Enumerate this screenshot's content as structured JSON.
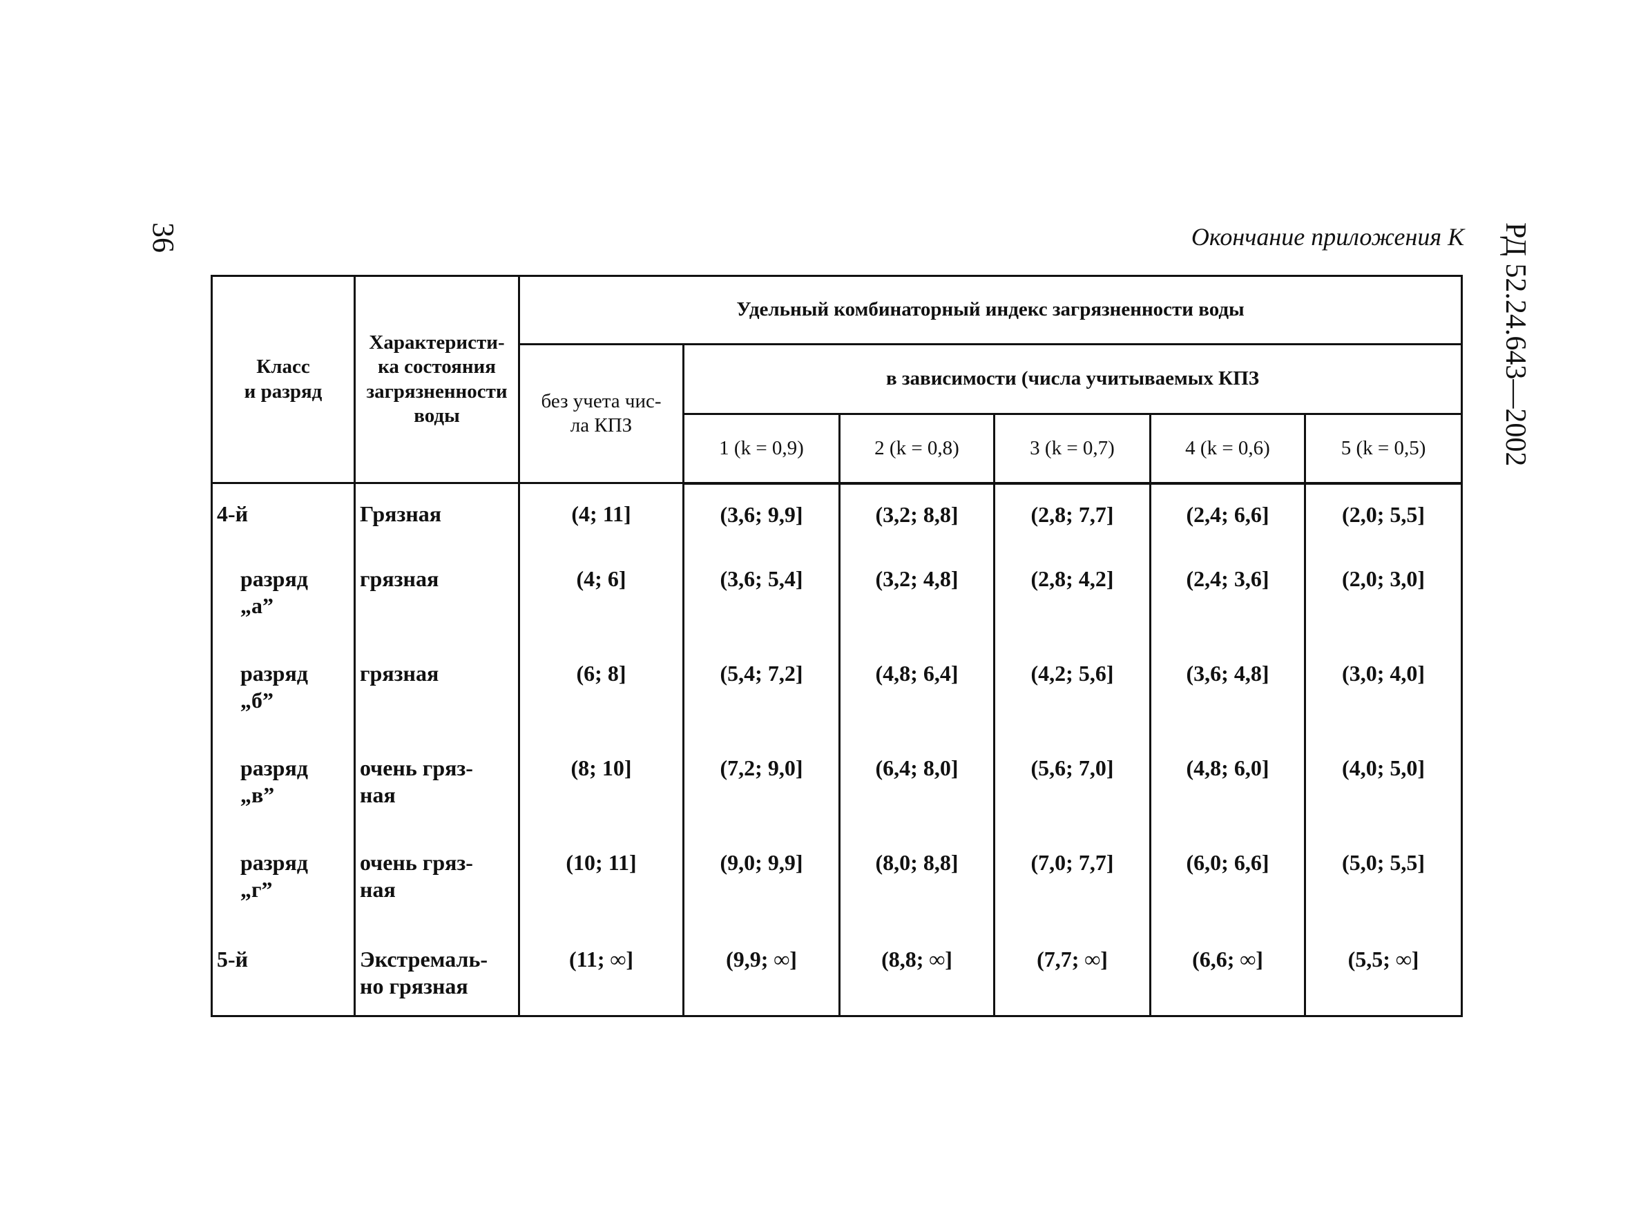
{
  "page_number": "36",
  "document_code": "РД 52.24.643—2002",
  "caption": "Окончание приложения К",
  "table": {
    "header": {
      "class": "Класс\nи разряд",
      "characteristic": "Характеристи-\nка состояния\nзагрязненности\nводы",
      "index": "Удельный комбинаторный индекс загрязненности воды",
      "without": "без учета чис-\nла КПЗ",
      "depending": "в зависимости (числа учитываемых КПЗ",
      "counts": [
        "1 (k = 0,9)",
        "2 (k = 0,8)",
        "3 (k = 0,7)",
        "4 (k = 0,6)",
        "5 (k = 0,5)"
      ]
    },
    "rows": [
      [
        "4-й",
        "Грязная",
        "(4; 11]",
        "(3,6; 9,9]",
        "(3,2; 8,8]",
        "(2,8; 7,7]",
        "(2,4; 6,6]",
        "(2,0; 5,5]"
      ],
      [
        "разряд\n„а”",
        "грязная",
        "(4; 6]",
        "(3,6; 5,4]",
        "(3,2; 4,8]",
        "(2,8; 4,2]",
        "(2,4; 3,6]",
        "(2,0; 3,0]"
      ],
      [
        "разряд\n„б”",
        "грязная",
        "(6; 8]",
        "(5,4; 7,2]",
        "(4,8; 6,4]",
        "(4,2; 5,6]",
        "(3,6; 4,8]",
        "(3,0; 4,0]"
      ],
      [
        "разряд\n„в”",
        "очень гряз-\nная",
        "(8; 10]",
        "(7,2; 9,0]",
        "(6,4; 8,0]",
        "(5,6; 7,0]",
        "(4,8; 6,0]",
        "(4,0; 5,0]"
      ],
      [
        "разряд\n„г”",
        "очень гряз-\nная",
        "(10; 11]",
        "(9,0; 9,9]",
        "(8,0; 8,8]",
        "(7,0; 7,7]",
        "(6,0; 6,6]",
        "(5,0; 5,5]"
      ],
      [
        "5-й",
        "Экстремаль-\nно грязная",
        "(11; ∞]",
        "(9,9; ∞]",
        "(8,8; ∞]",
        "(7,7; ∞]",
        "(6,6; ∞]",
        "(5,5; ∞]"
      ]
    ]
  }
}
